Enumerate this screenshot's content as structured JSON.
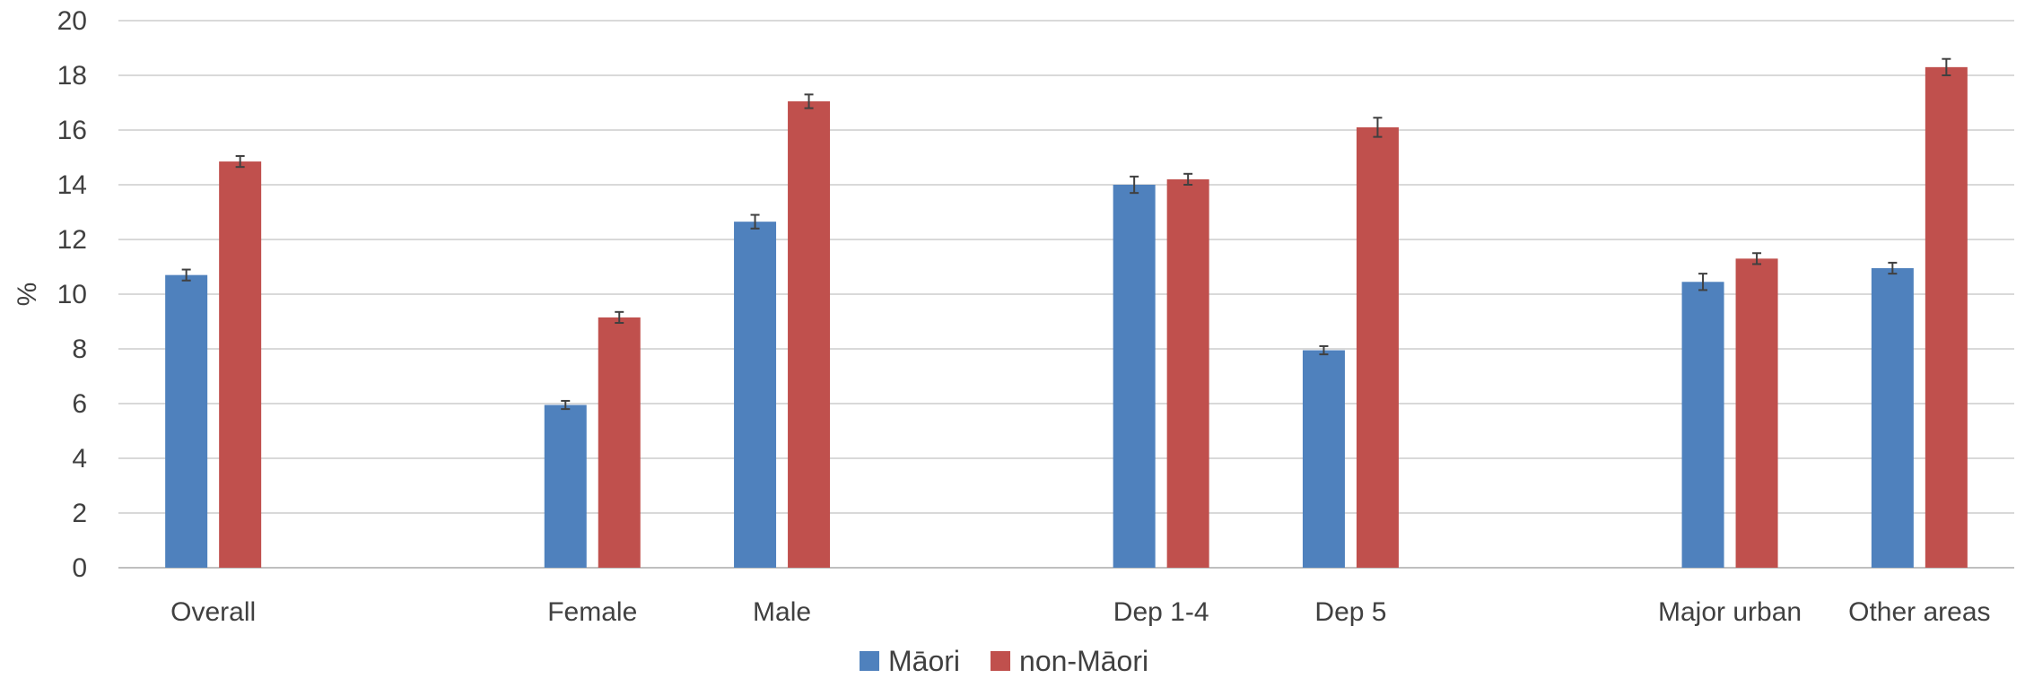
{
  "chart_data": {
    "type": "bar",
    "title": "",
    "xlabel": "",
    "ylabel": "%",
    "ylim": [
      0,
      20
    ],
    "yticks": [
      0,
      2,
      4,
      6,
      8,
      10,
      12,
      14,
      16,
      18,
      20
    ],
    "grid": true,
    "legend_position": "bottom",
    "categories": [
      "Overall",
      "",
      "Female",
      "Male",
      "",
      "Dep 1-4",
      "Dep 5",
      "",
      "Major urban",
      "Other areas"
    ],
    "series": [
      {
        "name": "Māori",
        "color": "#4F81BD",
        "values": [
          10.7,
          null,
          5.95,
          12.65,
          null,
          14.0,
          7.95,
          null,
          10.45,
          10.95
        ],
        "error_low": [
          0.2,
          null,
          0.15,
          0.25,
          null,
          0.3,
          0.15,
          null,
          0.3,
          0.2
        ],
        "error_high": [
          0.2,
          null,
          0.15,
          0.25,
          null,
          0.3,
          0.15,
          null,
          0.3,
          0.2
        ]
      },
      {
        "name": "non-Māori",
        "color": "#C0504D",
        "values": [
          14.85,
          null,
          9.15,
          17.05,
          null,
          14.2,
          16.1,
          null,
          11.3,
          18.3
        ],
        "error_low": [
          0.2,
          null,
          0.2,
          0.25,
          null,
          0.2,
          0.35,
          null,
          0.2,
          0.3
        ],
        "error_high": [
          0.2,
          null,
          0.2,
          0.25,
          null,
          0.2,
          0.35,
          null,
          0.2,
          0.3
        ]
      }
    ]
  }
}
